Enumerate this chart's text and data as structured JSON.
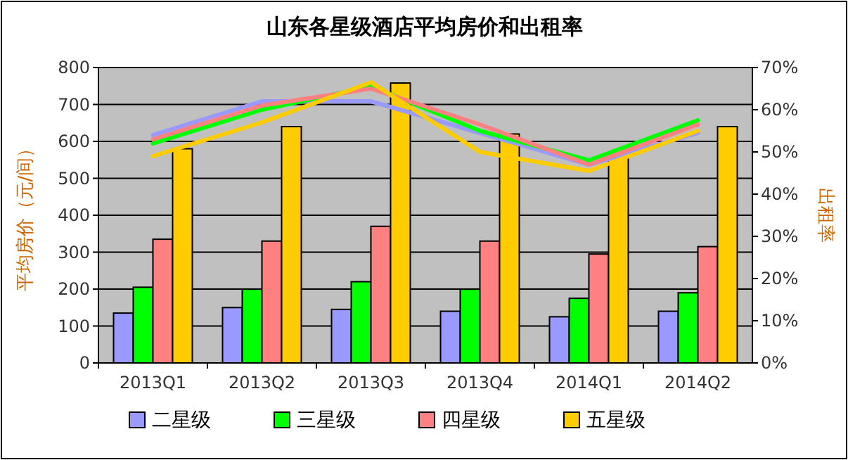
{
  "chart_data": {
    "type": "bar",
    "title": "山东各星级酒店平均房价和出租率",
    "ylabel": "平均房价（元/间）",
    "y2label": "出租率",
    "categories": [
      "2013Q1",
      "2013Q2",
      "2013Q3",
      "2013Q4",
      "2014Q1",
      "2014Q2"
    ],
    "ylim": [
      0,
      800
    ],
    "yticks": [
      0,
      100,
      200,
      300,
      400,
      500,
      600,
      700,
      800
    ],
    "y2lim": [
      0,
      0.7
    ],
    "y2ticks": [
      {
        "value": 0,
        "label": "0%"
      },
      {
        "value": 0.1,
        "label": "10%"
      },
      {
        "value": 0.2,
        "label": "20%"
      },
      {
        "value": 0.3,
        "label": "30%"
      },
      {
        "value": 0.4,
        "label": "40%"
      },
      {
        "value": 0.5,
        "label": "50%"
      },
      {
        "value": 0.6,
        "label": "60%"
      },
      {
        "value": 0.7,
        "label": "70%"
      }
    ],
    "grid": "y",
    "legend": "bottom",
    "series": [
      {
        "name": "二星级",
        "color": "#9999ff",
        "values": [
          135,
          150,
          145,
          140,
          125,
          140
        ]
      },
      {
        "name": "三星级",
        "color": "#00ff00",
        "values": [
          205,
          200,
          220,
          200,
          175,
          190
        ]
      },
      {
        "name": "四星级",
        "color": "#ff8080",
        "values": [
          335,
          330,
          370,
          330,
          295,
          315
        ]
      },
      {
        "name": "五星级",
        "color": "#ffcc00",
        "values": [
          580,
          640,
          758,
          620,
          560,
          640
        ]
      },
      {
        "type": "line",
        "axis": "y2",
        "color": "#9999ff",
        "values": [
          0.54,
          0.62,
          0.62,
          0.545,
          0.47,
          0.545
        ]
      },
      {
        "type": "line",
        "axis": "y2",
        "color": "#00ff00",
        "values": [
          0.52,
          0.6,
          0.655,
          0.55,
          0.48,
          0.575
        ]
      },
      {
        "type": "line",
        "axis": "y2",
        "color": "#ff8080",
        "values": [
          0.53,
          0.61,
          0.65,
          0.565,
          0.47,
          0.565
        ]
      },
      {
        "type": "line",
        "axis": "y2",
        "color": "#ffcc00",
        "values": [
          0.49,
          0.57,
          0.665,
          0.5,
          0.455,
          0.55
        ]
      }
    ]
  }
}
